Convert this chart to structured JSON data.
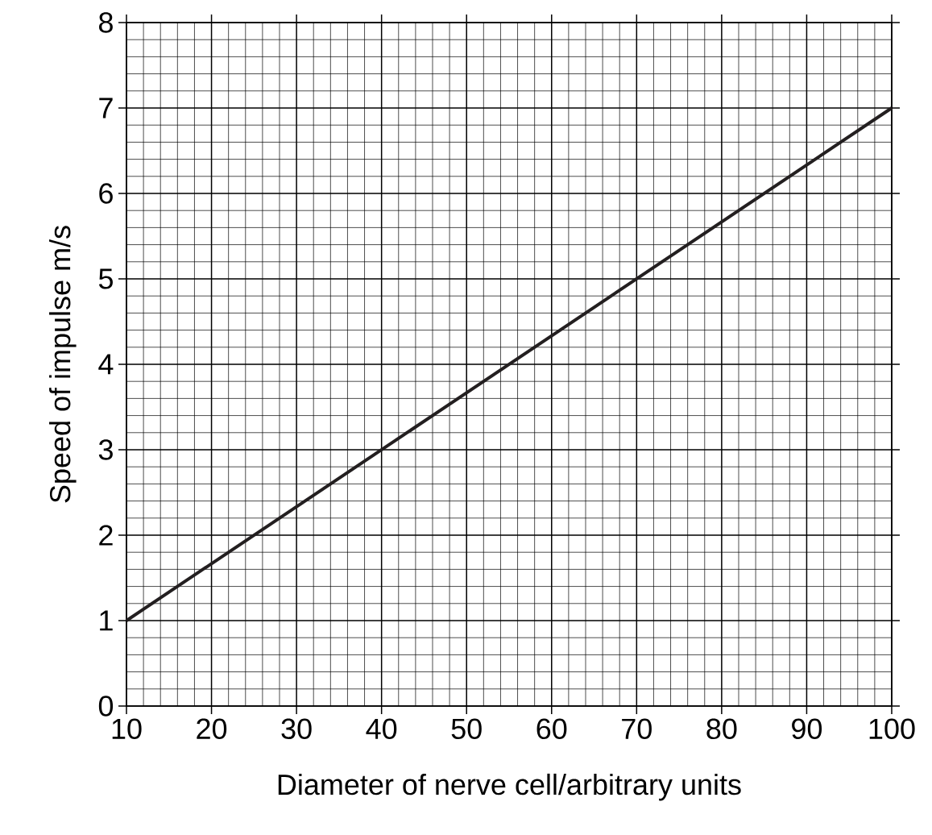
{
  "chart_data": {
    "type": "line",
    "xlabel": "Diameter of nerve cell/arbitrary units",
    "ylabel": "Speed of impulse m/s",
    "x": [
      10,
      100
    ],
    "series": [
      {
        "color": "#231f20",
        "values": [
          1,
          7
        ]
      }
    ],
    "xlim": [
      10,
      100
    ],
    "xticks": [
      10,
      20,
      30,
      40,
      50,
      60,
      70,
      80,
      90,
      100
    ],
    "ylim": [
      0,
      8
    ],
    "yticks": [
      0,
      1,
      2,
      3,
      4,
      5,
      6,
      7,
      8
    ],
    "grid": true,
    "marker": "none",
    "line_style": "solid"
  }
}
